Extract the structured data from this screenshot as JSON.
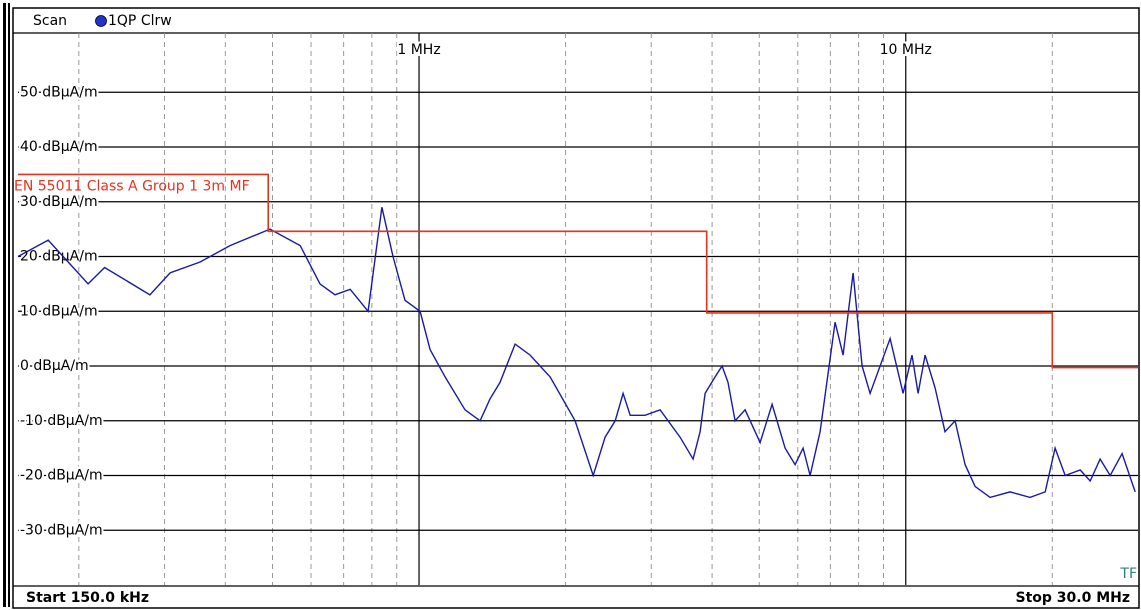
{
  "chart_data": {
    "type": "line",
    "mode": "Scan",
    "start_label": "Start 150.0 kHz",
    "stop_label": "Stop 30.0 MHz",
    "marker_text": "TF",
    "xscale": "log",
    "xlim": [
      0.15,
      30
    ],
    "xticks": [
      {
        "value": 1,
        "label": "1 MHz"
      },
      {
        "value": 10,
        "label": "10 MHz"
      }
    ],
    "minor_xticks": [
      0.2,
      0.3,
      0.4,
      0.5,
      0.6,
      0.7,
      0.8,
      0.9,
      2,
      3,
      4,
      5,
      6,
      7,
      8,
      9,
      20
    ],
    "ylim": [
      -40,
      60
    ],
    "yticks": [
      {
        "value": 50,
        "label": "50 dBµA/m"
      },
      {
        "value": 40,
        "label": "40 dBµA/m"
      },
      {
        "value": 30,
        "label": "30 dBµA/m"
      },
      {
        "value": 20,
        "label": "20 dBµA/m"
      },
      {
        "value": 10,
        "label": "10 dBµA/m"
      },
      {
        "value": 0,
        "label": "0 dBµA/m"
      },
      {
        "value": -10,
        "label": "-10 dBµA/m"
      },
      {
        "value": -20,
        "label": "-20 dBµA/m"
      },
      {
        "value": -30,
        "label": "-30 dBµA/m"
      }
    ],
    "grid": true,
    "series": [
      {
        "name": "1QP Clrw",
        "color": "#1a1aa6",
        "x": [
          0.15,
          0.173,
          0.209,
          0.226,
          0.28,
          0.308,
          0.355,
          0.409,
          0.494,
          0.57,
          0.626,
          0.672,
          0.722,
          0.786,
          0.839,
          0.884,
          0.936,
          1.005,
          1.054,
          1.131,
          1.243,
          1.335,
          1.399,
          1.467,
          1.575,
          1.691,
          1.859,
          2.092,
          2.279,
          2.412,
          2.529,
          2.626,
          2.715,
          2.913,
          3.128,
          3.438,
          3.657,
          3.78,
          3.87,
          4.057,
          4.194,
          4.314,
          4.46,
          4.676,
          5.02,
          5.313,
          5.65,
          5.924,
          6.153,
          6.36,
          6.668,
          7.158,
          7.434,
          7.793,
          8.133,
          8.447,
          8.856,
          9.285,
          9.873,
          10.3,
          10.6,
          10.96,
          11.49,
          12.04,
          12.63,
          13.24,
          13.88,
          14.9,
          16.38,
          18.0,
          19.34,
          20.27,
          21.26,
          22.82,
          23.93,
          25.08,
          26.3,
          27.83,
          29.6
        ],
        "values": [
          20,
          23,
          15,
          18,
          13,
          17,
          19,
          22,
          25,
          22,
          15,
          13,
          14,
          10,
          29,
          20,
          12,
          10,
          3,
          -2,
          -8,
          -10,
          -6,
          -3,
          4,
          2,
          -2,
          -10,
          -20,
          -13,
          -10,
          -5,
          -9,
          -9,
          -8,
          -13,
          -17,
          -12,
          -5,
          -2,
          0,
          -3,
          -10,
          -8,
          -14,
          -7,
          -15,
          -18,
          -15,
          -20,
          -12,
          8,
          2,
          17,
          0,
          -5,
          0,
          5,
          -5,
          2,
          -5,
          2,
          -4,
          -12,
          -10,
          -18,
          -22,
          -24,
          -23,
          -24,
          -23,
          -15,
          -20,
          -19,
          -21,
          -17,
          -20,
          -16,
          -23
        ]
      },
      {
        "name": "EN 55011 Class A Group 1 3m MF",
        "color": "#e8321e",
        "x": [
          0.15,
          0.49,
          0.49,
          3.9,
          3.9,
          20,
          20,
          30
        ],
        "values": [
          35,
          35,
          24.6,
          24.6,
          9.7,
          9.7,
          -0.3,
          -0.3
        ]
      }
    ]
  }
}
